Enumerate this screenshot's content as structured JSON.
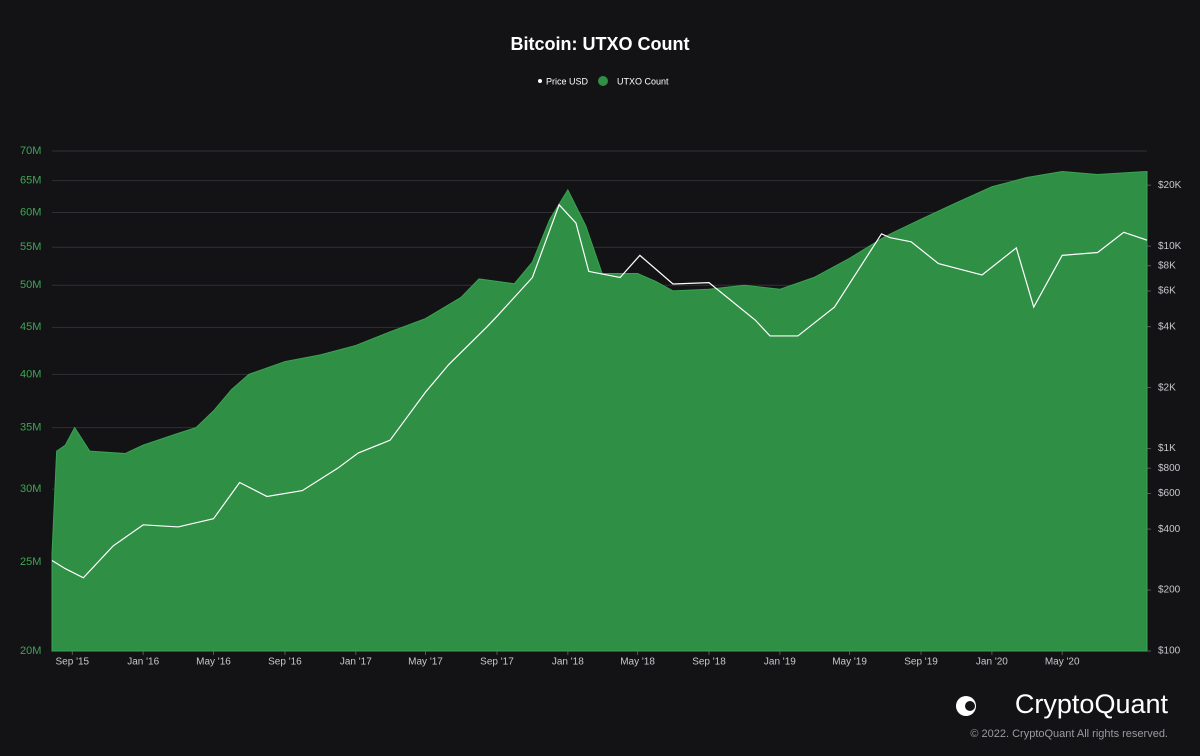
{
  "chart_data": {
    "type": "area_line",
    "title": "Bitcoin: UTXO Count",
    "xlim": [
      "2015-07-28",
      "2020-09-24"
    ],
    "xticks": [
      {
        "value": "2015-09-01",
        "label": "Sep '15"
      },
      {
        "value": "2016-01-01",
        "label": "Jan '16"
      },
      {
        "value": "2016-05-01",
        "label": "May '16"
      },
      {
        "value": "2016-09-01",
        "label": "Sep '16"
      },
      {
        "value": "2017-01-01",
        "label": "Jan '17"
      },
      {
        "value": "2017-05-01",
        "label": "May '17"
      },
      {
        "value": "2017-09-01",
        "label": "Sep '17"
      },
      {
        "value": "2018-01-01",
        "label": "Jan '18"
      },
      {
        "value": "2018-05-01",
        "label": "May '18"
      },
      {
        "value": "2018-09-01",
        "label": "Sep '18"
      },
      {
        "value": "2019-01-01",
        "label": "Jan '19"
      },
      {
        "value": "2019-05-01",
        "label": "May '19"
      },
      {
        "value": "2019-09-01",
        "label": "Sep '19"
      },
      {
        "value": "2020-01-01",
        "label": "Jan '20"
      },
      {
        "value": "2020-05-01",
        "label": "May '20"
      }
    ],
    "ylim": [
      20000000,
      70000000
    ],
    "yscale": "log",
    "yticks": [
      {
        "value": 20000000,
        "label": "20M"
      },
      {
        "value": 25000000,
        "label": "25M"
      },
      {
        "value": 30000000,
        "label": "30M"
      },
      {
        "value": 35000000,
        "label": "35M"
      },
      {
        "value": 40000000,
        "label": "40M"
      },
      {
        "value": 45000000,
        "label": "45M"
      },
      {
        "value": 50000000,
        "label": "50M"
      },
      {
        "value": 55000000,
        "label": "55M"
      },
      {
        "value": 60000000,
        "label": "60M"
      },
      {
        "value": 65000000,
        "label": "65M"
      },
      {
        "value": 70000000,
        "label": "70M"
      }
    ],
    "y2lim": [
      100,
      29500
    ],
    "y2scale": "log",
    "y2ticks": [
      {
        "value": 100,
        "label": "$100"
      },
      {
        "value": 200,
        "label": "$200"
      },
      {
        "value": 400,
        "label": "$400"
      },
      {
        "value": 600,
        "label": "$600"
      },
      {
        "value": 800,
        "label": "$800"
      },
      {
        "value": 1000,
        "label": "$1K"
      },
      {
        "value": 2000,
        "label": "$2K"
      },
      {
        "value": 4000,
        "label": "$4K"
      },
      {
        "value": 6000,
        "label": "$6K"
      },
      {
        "value": 8000,
        "label": "$8K"
      },
      {
        "value": 10000,
        "label": "$10K"
      },
      {
        "value": 20000,
        "label": "$20K"
      }
    ],
    "grid": true,
    "legend": "top",
    "series": [
      {
        "name": "Price USD",
        "color": "#ffffff",
        "kind": "line",
        "axis": "y2",
        "x": [
          "2015-07-28",
          "2015-08-20",
          "2015-09-20",
          "2015-11-10",
          "2016-01-01",
          "2016-03-01",
          "2016-05-01",
          "2016-06-15",
          "2016-08-01",
          "2016-10-01",
          "2016-12-01",
          "2017-01-05",
          "2017-03-01",
          "2017-05-01",
          "2017-06-10",
          "2017-08-15",
          "2017-09-01",
          "2017-11-01",
          "2017-12-17",
          "2018-01-15",
          "2018-02-06",
          "2018-04-01",
          "2018-05-05",
          "2018-07-01",
          "2018-09-01",
          "2018-11-20",
          "2018-12-15",
          "2019-02-01",
          "2019-04-05",
          "2019-06-25",
          "2019-07-10",
          "2019-08-15",
          "2019-10-01",
          "2019-12-15",
          "2020-02-12",
          "2020-03-13",
          "2020-05-01",
          "2020-07-01",
          "2020-08-15",
          "2020-09-24"
        ],
        "values": [
          280,
          255,
          230,
          330,
          420,
          410,
          450,
          680,
          580,
          620,
          800,
          950,
          1100,
          1900,
          2600,
          4000,
          4500,
          7000,
          16000,
          13000,
          7500,
          7000,
          9000,
          6500,
          6600,
          4300,
          3600,
          3600,
          5000,
          11500,
          11000,
          10500,
          8200,
          7200,
          9800,
          5000,
          9000,
          9300,
          11700,
          10700
        ]
      },
      {
        "name": "UTXO Count",
        "color": "#2e8f45",
        "kind": "area",
        "axis": "y",
        "x": [
          "2015-07-28",
          "2015-08-05",
          "2015-08-20",
          "2015-09-05",
          "2015-10-01",
          "2015-12-01",
          "2016-01-01",
          "2016-03-01",
          "2016-04-01",
          "2016-05-01",
          "2016-06-01",
          "2016-07-01",
          "2016-09-01",
          "2016-11-01",
          "2017-01-01",
          "2017-03-01",
          "2017-05-01",
          "2017-07-01",
          "2017-08-01",
          "2017-09-01",
          "2017-10-01",
          "2017-11-01",
          "2017-12-01",
          "2018-01-01",
          "2018-02-01",
          "2018-03-01",
          "2018-05-01",
          "2018-06-01",
          "2018-07-01",
          "2018-09-01",
          "2018-11-01",
          "2019-01-01",
          "2019-03-01",
          "2019-05-01",
          "2019-07-01",
          "2019-09-01",
          "2019-11-01",
          "2020-01-01",
          "2020-03-01",
          "2020-05-01",
          "2020-07-01",
          "2020-09-24"
        ],
        "values": [
          25500000,
          33000000,
          33500000,
          35000000,
          33000000,
          32800000,
          33500000,
          34500000,
          35000000,
          36500000,
          38500000,
          40000000,
          41300000,
          42000000,
          43000000,
          44500000,
          46000000,
          48500000,
          50800000,
          50500000,
          50200000,
          53000000,
          59000000,
          63500000,
          58000000,
          51500000,
          51500000,
          50500000,
          49300000,
          49500000,
          50000000,
          49500000,
          51000000,
          53500000,
          56500000,
          59000000,
          61500000,
          64000000,
          65500000,
          66500000,
          66000000,
          66500000
        ]
      }
    ],
    "watermark": "CryptoQuant",
    "footer": "© 2022. CryptoQuant All rights reserved."
  }
}
